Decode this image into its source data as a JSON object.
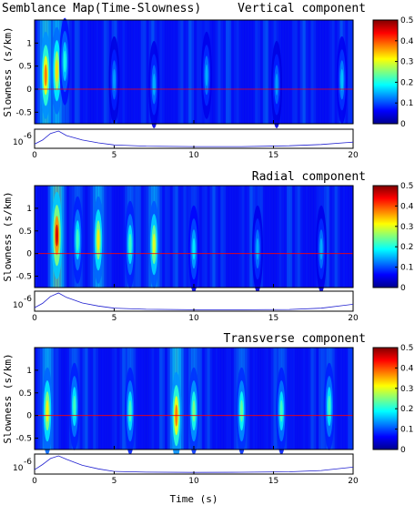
{
  "figure": {
    "main_title": "Semblance Map(Time-Slowness)",
    "xlabel": "Time (s)"
  },
  "chart_data": [
    {
      "type": "heatmap",
      "title": "Vertical component",
      "xlabel": "",
      "ylabel": "Slowness (s/km)",
      "xlim": [
        0,
        20
      ],
      "ylim": [
        -0.75,
        1.5
      ],
      "x_ticks": [
        "0",
        "5",
        "10",
        "15",
        "20"
      ],
      "y_ticks": [
        "1",
        "0.5",
        "0",
        "-0.5"
      ],
      "colorbar": {
        "range": [
          0,
          0.5
        ],
        "ticks": [
          "0.5",
          "0.4",
          "0.3",
          "0.2",
          "0.1",
          "0"
        ],
        "colormap": "jet"
      },
      "reference_line_slowness": 0,
      "peaks": [
        {
          "time": 0.7,
          "slowness": 0.3,
          "semblance": 0.38
        },
        {
          "time": 1.4,
          "slowness": 0.4,
          "semblance": 0.33
        },
        {
          "time": 1.9,
          "slowness": 0.6,
          "semblance": 0.2
        },
        {
          "time": 5.0,
          "slowness": 0.2,
          "semblance": 0.14
        },
        {
          "time": 7.5,
          "slowness": 0.1,
          "semblance": 0.15
        },
        {
          "time": 10.8,
          "slowness": 0.3,
          "semblance": 0.15
        },
        {
          "time": 15.2,
          "slowness": 0.1,
          "semblance": 0.14
        },
        {
          "time": 19.3,
          "slowness": 0.2,
          "semblance": 0.16
        }
      ],
      "energy_trace": {
        "ylabel": "10",
        "exponent": "-6",
        "x": [
          0,
          0.5,
          1,
          1.5,
          2,
          3,
          4,
          5,
          7,
          10,
          13,
          16,
          18,
          20
        ],
        "y": [
          0.2,
          0.45,
          0.85,
          1.0,
          0.72,
          0.45,
          0.28,
          0.15,
          0.08,
          0.05,
          0.05,
          0.1,
          0.18,
          0.32
        ]
      }
    },
    {
      "type": "heatmap",
      "title": "Radial component",
      "xlabel": "",
      "ylabel": "Slowness (s/km)",
      "xlim": [
        0,
        20
      ],
      "ylim": [
        -0.75,
        1.5
      ],
      "x_ticks": [
        "0",
        "5",
        "10",
        "15",
        "20"
      ],
      "y_ticks": [
        "1",
        "0.5",
        "0",
        "-0.5"
      ],
      "colorbar": {
        "range": [
          0,
          0.5
        ],
        "ticks": [
          "0.5",
          "0.4",
          "0.3",
          "0.2",
          "0.1",
          "0"
        ],
        "colormap": "jet"
      },
      "reference_line_slowness": 0,
      "peaks": [
        {
          "time": 1.4,
          "slowness": 0.4,
          "semblance": 0.46
        },
        {
          "time": 2.7,
          "slowness": 0.3,
          "semblance": 0.22
        },
        {
          "time": 4.0,
          "slowness": 0.3,
          "semblance": 0.32
        },
        {
          "time": 6.0,
          "slowness": 0.2,
          "semblance": 0.22
        },
        {
          "time": 7.5,
          "slowness": 0.2,
          "semblance": 0.3
        },
        {
          "time": 10.0,
          "slowness": 0.1,
          "semblance": 0.18
        },
        {
          "time": 14.0,
          "slowness": 0.1,
          "semblance": 0.15
        },
        {
          "time": 18.0,
          "slowness": 0.1,
          "semblance": 0.15
        }
      ],
      "energy_trace": {
        "ylabel": "10",
        "exponent": "-6",
        "x": [
          0,
          0.5,
          1,
          1.5,
          2,
          3,
          4,
          5,
          7,
          10,
          13,
          16,
          18,
          20
        ],
        "y": [
          0.15,
          0.4,
          0.8,
          1.0,
          0.75,
          0.42,
          0.25,
          0.12,
          0.06,
          0.03,
          0.03,
          0.05,
          0.12,
          0.35
        ]
      }
    },
    {
      "type": "heatmap",
      "title": "Transverse component",
      "xlabel": "",
      "ylabel": "Slowness (s/km)",
      "xlim": [
        0,
        20
      ],
      "ylim": [
        -0.75,
        1.5
      ],
      "x_ticks": [
        "0",
        "5",
        "10",
        "15",
        "20"
      ],
      "y_ticks": [
        "1",
        "0.5",
        "0",
        "-0.5"
      ],
      "colorbar": {
        "range": [
          0,
          0.5
        ],
        "ticks": [
          "0.5",
          "0.4",
          "0.3",
          "0.2",
          "0.1",
          "0"
        ],
        "colormap": "jet"
      },
      "reference_line_slowness": 0,
      "peaks": [
        {
          "time": 0.8,
          "slowness": 0.1,
          "semblance": 0.32
        },
        {
          "time": 2.5,
          "slowness": 0.2,
          "semblance": 0.22
        },
        {
          "time": 6.0,
          "slowness": 0.1,
          "semblance": 0.22
        },
        {
          "time": 8.9,
          "slowness": 0.0,
          "semblance": 0.38
        },
        {
          "time": 10.0,
          "slowness": 0.1,
          "semblance": 0.25
        },
        {
          "time": 13.0,
          "slowness": 0.1,
          "semblance": 0.24
        },
        {
          "time": 15.5,
          "slowness": 0.1,
          "semblance": 0.22
        },
        {
          "time": 18.5,
          "slowness": 0.2,
          "semblance": 0.22
        }
      ],
      "energy_trace": {
        "ylabel": "10",
        "exponent": "-6",
        "x": [
          0,
          0.5,
          1,
          1.5,
          2,
          3,
          4,
          5,
          7,
          10,
          13,
          16,
          18,
          20
        ],
        "y": [
          0.2,
          0.5,
          0.85,
          1.0,
          0.8,
          0.45,
          0.25,
          0.1,
          0.06,
          0.04,
          0.05,
          0.08,
          0.15,
          0.35
        ]
      }
    }
  ]
}
